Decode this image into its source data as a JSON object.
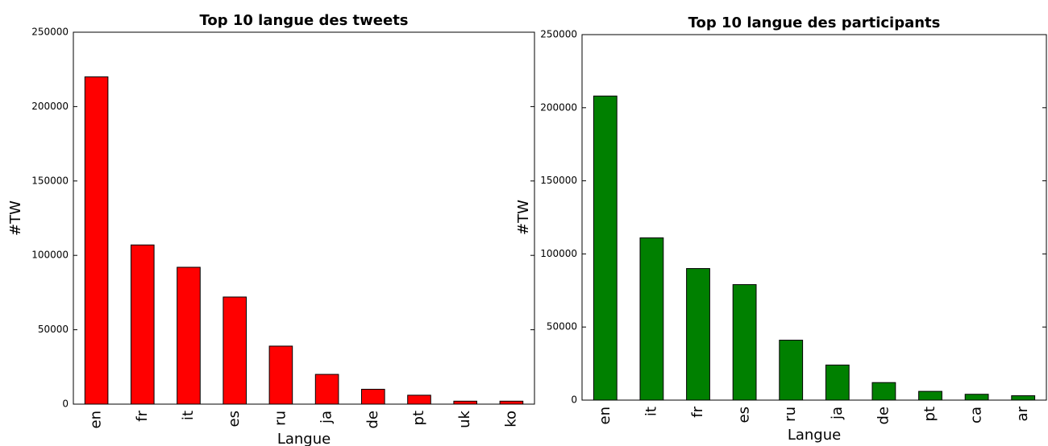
{
  "chart_data": [
    {
      "type": "bar",
      "title": "Top 10 langue des tweets",
      "xlabel": "Langue",
      "ylabel": "#TW",
      "categories": [
        "en",
        "fr",
        "it",
        "es",
        "ru",
        "ja",
        "de",
        "pt",
        "uk",
        "ko"
      ],
      "values": [
        220000,
        107000,
        92000,
        72000,
        39000,
        20000,
        10000,
        6000,
        2000,
        2000
      ],
      "color": "#ff0000",
      "ylim": [
        0,
        250000
      ],
      "yticks": [
        0,
        50000,
        100000,
        150000,
        200000,
        250000
      ]
    },
    {
      "type": "bar",
      "title": "Top 10 langue des participants",
      "xlabel": "Langue",
      "ylabel": "#TW",
      "categories": [
        "en",
        "it",
        "fr",
        "es",
        "ru",
        "ja",
        "de",
        "pt",
        "ca",
        "ar"
      ],
      "values": [
        208000,
        111000,
        90000,
        79000,
        41000,
        24000,
        12000,
        6000,
        4000,
        3000
      ],
      "color": "#008000",
      "ylim": [
        0,
        250000
      ],
      "yticks": [
        0,
        50000,
        100000,
        150000,
        200000,
        250000
      ]
    }
  ]
}
